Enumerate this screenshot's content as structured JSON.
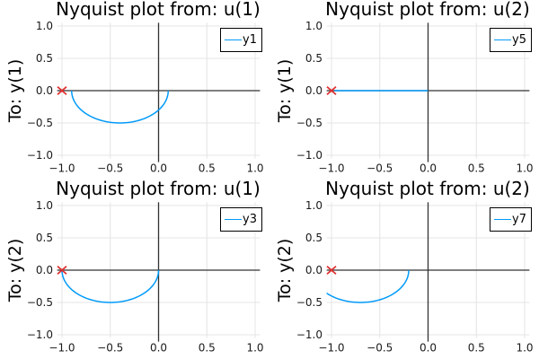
{
  "figure": {
    "background": "#ffffff",
    "colors": {
      "series": "#009af9",
      "critical_marker": "#e03131",
      "grid": "#e4e4e4",
      "zeroline": "#333333",
      "text": "#000000",
      "legend_border": "#000000",
      "legend_background": "#ffffff"
    }
  },
  "chart_data": [
    {
      "id": "u1-to-y1",
      "type": "line",
      "title": "Nyquist plot from: u(1)",
      "ylabel": "To: y(1)",
      "xlim": [
        -1.05,
        1.05
      ],
      "ylim": [
        -1.05,
        1.05
      ],
      "xticks": [
        -1.0,
        -0.5,
        0.0,
        0.5,
        1.0
      ],
      "yticks": [
        1.0,
        0.5,
        0.0,
        -0.5,
        -1.0
      ],
      "xtick_labels": [
        "−1.0",
        "−0.5",
        "0.0",
        "0.5",
        "1.0"
      ],
      "ytick_labels": [
        "1.0",
        "0.5",
        "0.0",
        "−0.5",
        "−1.0"
      ],
      "legend_position": "top-right",
      "series": [
        {
          "name": "y1",
          "color": "#009af9",
          "curve": {
            "kind": "arc",
            "center": [
              -0.4,
              0
            ],
            "radius": 0.5,
            "deg_start": 180,
            "deg_end": 360
          },
          "endpoints": [
            [
              -0.9,
              0.0
            ],
            [
              0.1,
              0.0
            ]
          ],
          "min_point": [
            -0.4,
            -0.5
          ]
        }
      ],
      "annotations": [
        {
          "kind": "marker",
          "shape": "xcross",
          "point": [
            -1,
            0
          ],
          "color": "#e03131",
          "meaning": "critical point −1+0i"
        }
      ]
    },
    {
      "id": "u2-to-y1",
      "type": "line",
      "title": "Nyquist plot from: u(2)",
      "ylabel": "To: y(1)",
      "xlim": [
        -1.05,
        1.05
      ],
      "ylim": [
        -1.05,
        1.05
      ],
      "xticks": [
        -1.0,
        -0.5,
        0.0,
        0.5,
        1.0
      ],
      "yticks": [
        1.0,
        0.5,
        0.0,
        -0.5,
        -1.0
      ],
      "xtick_labels": [
        "−1.0",
        "−0.5",
        "0.0",
        "0.5",
        "1.0"
      ],
      "ytick_labels": [
        "1.0",
        "0.5",
        "0.0",
        "−0.5",
        "−1.0"
      ],
      "legend_position": "top-right",
      "series": [
        {
          "name": "y5",
          "color": "#009af9",
          "curve": {
            "kind": "segment",
            "from": [
              -0.97,
              0.0
            ],
            "to": [
              0.0,
              0.0
            ]
          },
          "endpoints": [
            [
              -0.97,
              0.0
            ],
            [
              0.0,
              0.0
            ]
          ]
        }
      ],
      "annotations": [
        {
          "kind": "marker",
          "shape": "xcross",
          "point": [
            -1,
            0
          ],
          "color": "#e03131",
          "meaning": "critical point −1+0i"
        }
      ]
    },
    {
      "id": "u1-to-y2",
      "type": "line",
      "title": "Nyquist plot from: u(1)",
      "ylabel": "To: y(2)",
      "xlim": [
        -1.05,
        1.05
      ],
      "ylim": [
        -1.05,
        1.05
      ],
      "xticks": [
        -1.0,
        -0.5,
        0.0,
        0.5,
        1.0
      ],
      "yticks": [
        1.0,
        0.5,
        0.0,
        -0.5,
        -1.0
      ],
      "xtick_labels": [
        "−1.0",
        "−0.5",
        "0.0",
        "0.5",
        "1.0"
      ],
      "ytick_labels": [
        "1.0",
        "0.5",
        "0.0",
        "−0.5",
        "−1.0"
      ],
      "legend_position": "top-right",
      "series": [
        {
          "name": "y3",
          "color": "#009af9",
          "curve": {
            "kind": "arc",
            "center": [
              -0.5,
              0
            ],
            "radius": 0.5,
            "deg_start": 180,
            "deg_end": 360
          },
          "endpoints": [
            [
              -1.0,
              0.0
            ],
            [
              0.0,
              0.0
            ]
          ],
          "min_point": [
            -0.5,
            -0.5
          ]
        }
      ],
      "annotations": [
        {
          "kind": "marker",
          "shape": "xcross",
          "point": [
            -1,
            0
          ],
          "color": "#e03131",
          "meaning": "critical point −1+0i"
        }
      ]
    },
    {
      "id": "u2-to-y2",
      "type": "line",
      "title": "Nyquist plot from: u(2)",
      "ylabel": "To: y(2)",
      "xlim": [
        -1.05,
        1.05
      ],
      "ylim": [
        -1.05,
        1.05
      ],
      "xticks": [
        -1.0,
        -0.5,
        0.0,
        0.5,
        1.0
      ],
      "yticks": [
        1.0,
        0.5,
        0.0,
        -0.5,
        -1.0
      ],
      "xtick_labels": [
        "−1.0",
        "−0.5",
        "0.0",
        "0.5",
        "1.0"
      ],
      "ytick_labels": [
        "1.0",
        "0.5",
        "0.0",
        "−0.5",
        "−1.0"
      ],
      "legend_position": "top-right",
      "series": [
        {
          "name": "y7",
          "color": "#009af9",
          "curve": {
            "kind": "arc",
            "center": [
              -0.7,
              0
            ],
            "radius": 0.5,
            "deg_start": 180,
            "deg_end": 360
          },
          "endpoints": [
            [
              -1.2,
              0.0
            ],
            [
              -0.2,
              0.0
            ]
          ],
          "min_point": [
            -0.7,
            -0.5
          ],
          "note": "left end clipped at x = −1.05, visible from (−1.05, −0.36)"
        }
      ],
      "annotations": [
        {
          "kind": "marker",
          "shape": "xcross",
          "point": [
            -1,
            0
          ],
          "color": "#e03131",
          "meaning": "critical point −1+0i"
        }
      ]
    }
  ]
}
